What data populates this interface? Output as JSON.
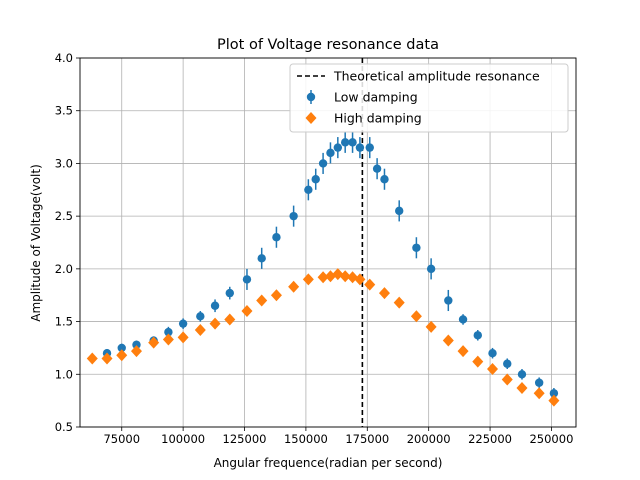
{
  "chart_data": {
    "type": "scatter",
    "title": "Plot of Voltage resonance data",
    "xlabel": "Angular frequence(radian per second)",
    "ylabel": "Amplitude of Voltage(volt)",
    "xlim": [
      58000,
      260000
    ],
    "ylim": [
      0.5,
      4.0
    ],
    "x_ticks": [
      75000,
      100000,
      125000,
      150000,
      175000,
      200000,
      225000,
      250000
    ],
    "y_ticks": [
      0.5,
      1.0,
      1.5,
      2.0,
      2.5,
      3.0,
      3.5,
      4.0
    ],
    "grid": true,
    "legend_position": "top-right",
    "resonance_line": {
      "label": "Theoretical amplitude resonance",
      "x": 173000,
      "color": "#000000"
    },
    "series": [
      {
        "name": "Low damping",
        "marker": "circle",
        "color": "#1f77b4",
        "points": [
          {
            "x": 69000,
            "y": 1.2,
            "err": 0.04
          },
          {
            "x": 75000,
            "y": 1.25,
            "err": 0.04
          },
          {
            "x": 81000,
            "y": 1.28,
            "err": 0.04
          },
          {
            "x": 88000,
            "y": 1.32,
            "err": 0.04
          },
          {
            "x": 94000,
            "y": 1.4,
            "err": 0.05
          },
          {
            "x": 100000,
            "y": 1.48,
            "err": 0.05
          },
          {
            "x": 107000,
            "y": 1.55,
            "err": 0.05
          },
          {
            "x": 113000,
            "y": 1.65,
            "err": 0.06
          },
          {
            "x": 119000,
            "y": 1.77,
            "err": 0.06
          },
          {
            "x": 126000,
            "y": 1.9,
            "err": 0.1
          },
          {
            "x": 132000,
            "y": 2.1,
            "err": 0.1
          },
          {
            "x": 138000,
            "y": 2.3,
            "err": 0.1
          },
          {
            "x": 145000,
            "y": 2.5,
            "err": 0.1
          },
          {
            "x": 151000,
            "y": 2.75,
            "err": 0.1
          },
          {
            "x": 154000,
            "y": 2.85,
            "err": 0.1
          },
          {
            "x": 157000,
            "y": 3.0,
            "err": 0.1
          },
          {
            "x": 160000,
            "y": 3.1,
            "err": 0.1
          },
          {
            "x": 163000,
            "y": 3.15,
            "err": 0.1
          },
          {
            "x": 166000,
            "y": 3.2,
            "err": 0.1
          },
          {
            "x": 169000,
            "y": 3.2,
            "err": 0.1
          },
          {
            "x": 172000,
            "y": 3.15,
            "err": 0.1
          },
          {
            "x": 176000,
            "y": 3.15,
            "err": 0.1
          },
          {
            "x": 179000,
            "y": 2.95,
            "err": 0.1
          },
          {
            "x": 182000,
            "y": 2.85,
            "err": 0.1
          },
          {
            "x": 188000,
            "y": 2.55,
            "err": 0.1
          },
          {
            "x": 195000,
            "y": 2.2,
            "err": 0.1
          },
          {
            "x": 201000,
            "y": 2.0,
            "err": 0.1
          },
          {
            "x": 208000,
            "y": 1.7,
            "err": 0.1
          },
          {
            "x": 214000,
            "y": 1.52,
            "err": 0.05
          },
          {
            "x": 220000,
            "y": 1.37,
            "err": 0.05
          },
          {
            "x": 226000,
            "y": 1.2,
            "err": 0.05
          },
          {
            "x": 232000,
            "y": 1.1,
            "err": 0.05
          },
          {
            "x": 238000,
            "y": 1.0,
            "err": 0.05
          },
          {
            "x": 245000,
            "y": 0.92,
            "err": 0.05
          },
          {
            "x": 251000,
            "y": 0.82,
            "err": 0.05
          }
        ]
      },
      {
        "name": "High damping",
        "marker": "diamond",
        "color": "#ff7f0e",
        "points": [
          {
            "x": 63000,
            "y": 1.15
          },
          {
            "x": 69000,
            "y": 1.15
          },
          {
            "x": 75000,
            "y": 1.18
          },
          {
            "x": 81000,
            "y": 1.22
          },
          {
            "x": 88000,
            "y": 1.3
          },
          {
            "x": 94000,
            "y": 1.33
          },
          {
            "x": 100000,
            "y": 1.35
          },
          {
            "x": 107000,
            "y": 1.42
          },
          {
            "x": 113000,
            "y": 1.48
          },
          {
            "x": 119000,
            "y": 1.52
          },
          {
            "x": 126000,
            "y": 1.6
          },
          {
            "x": 132000,
            "y": 1.7
          },
          {
            "x": 138000,
            "y": 1.75
          },
          {
            "x": 145000,
            "y": 1.83
          },
          {
            "x": 151000,
            "y": 1.9
          },
          {
            "x": 157000,
            "y": 1.92
          },
          {
            "x": 160000,
            "y": 1.93
          },
          {
            "x": 163000,
            "y": 1.95
          },
          {
            "x": 166000,
            "y": 1.93
          },
          {
            "x": 169000,
            "y": 1.92
          },
          {
            "x": 172000,
            "y": 1.9
          },
          {
            "x": 176000,
            "y": 1.85
          },
          {
            "x": 182000,
            "y": 1.77
          },
          {
            "x": 188000,
            "y": 1.68
          },
          {
            "x": 195000,
            "y": 1.55
          },
          {
            "x": 201000,
            "y": 1.45
          },
          {
            "x": 208000,
            "y": 1.32
          },
          {
            "x": 214000,
            "y": 1.22
          },
          {
            "x": 220000,
            "y": 1.12
          },
          {
            "x": 226000,
            "y": 1.05
          },
          {
            "x": 232000,
            "y": 0.95
          },
          {
            "x": 238000,
            "y": 0.87
          },
          {
            "x": 245000,
            "y": 0.82
          },
          {
            "x": 251000,
            "y": 0.75
          }
        ]
      }
    ]
  }
}
